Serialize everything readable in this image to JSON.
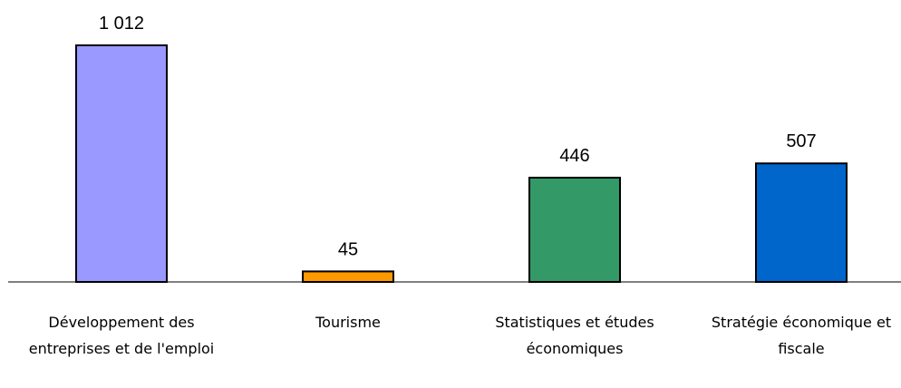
{
  "chart_data": {
    "type": "bar",
    "categories": [
      "Développement des entreprises et de l'emploi",
      "Tourisme",
      "Statistiques et études économiques",
      "Stratégie économique et fiscale"
    ],
    "values": [
      1012,
      45,
      446,
      507
    ],
    "value_labels": [
      "1 012",
      "45",
      "446",
      "507"
    ],
    "colors": [
      "#9999ff",
      "#ff9900",
      "#339966",
      "#0066cc"
    ]
  }
}
